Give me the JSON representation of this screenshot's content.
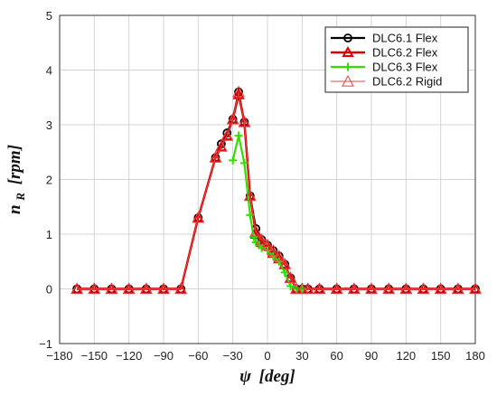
{
  "chart_data": {
    "type": "line",
    "xlabel": {
      "main": "ψ",
      "unit": "[deg]"
    },
    "ylabel": {
      "main": "n",
      "sub": "R",
      "unit": "[rpm]"
    },
    "xlim": [
      -180,
      180
    ],
    "ylim": [
      -1,
      5
    ],
    "xticks": [
      "−180",
      "−150",
      "−120",
      "−90",
      "−60",
      "−30",
      "0",
      "30",
      "60",
      "90",
      "120",
      "150",
      "180"
    ],
    "yticks": [
      "−1",
      "0",
      "1",
      "2",
      "3",
      "4",
      "5"
    ],
    "grid": true,
    "legend_position": "top-right",
    "series": [
      {
        "name": "DLC6.1 Flex",
        "color": "#000000",
        "marker": "circle",
        "x": [
          -165,
          -150,
          -135,
          -120,
          -105,
          -90,
          -75,
          -60,
          -45,
          -40,
          -35,
          -30,
          -25,
          -20,
          -15,
          -10,
          -5,
          0,
          5,
          10,
          15,
          20,
          25,
          30,
          35,
          45,
          60,
          75,
          90,
          105,
          120,
          135,
          150,
          165,
          180
        ],
        "y": [
          0,
          0,
          0,
          0,
          0,
          0,
          0,
          1.3,
          2.4,
          2.65,
          2.85,
          3.1,
          3.6,
          3.05,
          1.7,
          1.1,
          0.9,
          0.8,
          0.7,
          0.6,
          0.45,
          0.2,
          0,
          0,
          0,
          0,
          0,
          0,
          0,
          0,
          0,
          0,
          0,
          0,
          0
        ]
      },
      {
        "name": "DLC6.2 Flex",
        "color": "#dd0000",
        "marker": "triangle",
        "x": [
          -165,
          -150,
          -135,
          -120,
          -105,
          -90,
          -75,
          -60,
          -45,
          -40,
          -35,
          -30,
          -25,
          -20,
          -15,
          -10,
          -5,
          0,
          5,
          10,
          15,
          20,
          25,
          30,
          35,
          45,
          60,
          75,
          90,
          105,
          120,
          135,
          150,
          165,
          180
        ],
        "y": [
          0,
          0,
          0,
          0,
          0,
          0,
          0,
          1.3,
          2.4,
          2.6,
          2.8,
          3.1,
          3.55,
          3.05,
          1.7,
          1.0,
          0.85,
          0.8,
          0.65,
          0.55,
          0.45,
          0.2,
          0,
          0,
          0,
          0,
          0,
          0,
          0,
          0,
          0,
          0,
          0,
          0,
          0
        ]
      },
      {
        "name": "DLC6.3 Flex",
        "color": "#33dd00",
        "marker": "plus",
        "x": [
          -30,
          -25,
          -20,
          -15,
          -12,
          -10,
          -7,
          -5,
          0,
          5,
          10,
          15,
          20,
          25,
          30
        ],
        "y": [
          2.35,
          2.8,
          2.3,
          1.35,
          0.95,
          0.85,
          0.8,
          0.75,
          0.7,
          0.6,
          0.5,
          0.3,
          0.05,
          0,
          0
        ]
      },
      {
        "name": "DLC6.2 Rigid",
        "color": "#e04444",
        "marker": "open-triangle",
        "x": [
          -165,
          -150,
          -135,
          -120,
          -105,
          -90,
          -75,
          -60,
          -45,
          -40,
          -35,
          -30,
          -25,
          -20,
          -15,
          -10,
          -5,
          0,
          5,
          10,
          15,
          20,
          25,
          30,
          35,
          45,
          60,
          75,
          90,
          105,
          120,
          135,
          150,
          165,
          180
        ],
        "y": [
          0,
          0,
          0,
          0,
          0,
          0,
          0,
          1.3,
          2.4,
          2.6,
          2.8,
          3.1,
          3.6,
          3.05,
          1.7,
          1.05,
          0.9,
          0.8,
          0.7,
          0.6,
          0.45,
          0.2,
          0,
          0,
          0,
          0,
          0,
          0,
          0,
          0,
          0,
          0,
          0,
          0,
          0
        ]
      }
    ]
  }
}
